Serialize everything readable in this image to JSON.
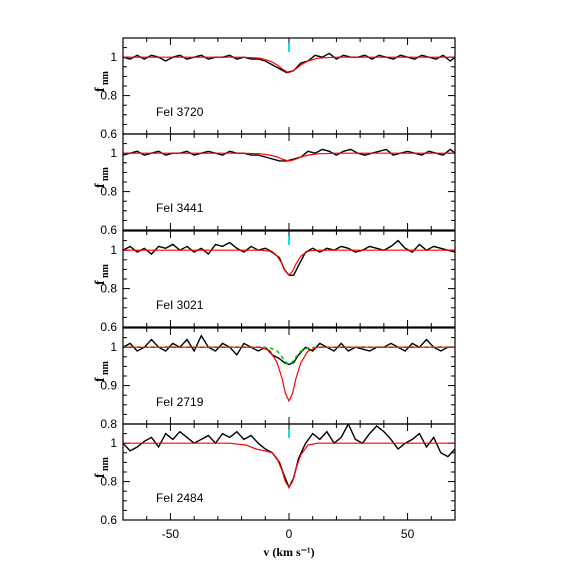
{
  "chart_data": {
    "type": "line",
    "xlabel": "v (km s⁻¹)",
    "xlim": [
      -70,
      70
    ],
    "xticks": [
      -50,
      0,
      50
    ],
    "ylabel_main": "f",
    "ylabel_sub": "nm",
    "colors": {
      "data": "#000000",
      "model": "#ff0000",
      "alt_model": "#00cc00",
      "marker": "#00e5ee"
    },
    "panels": [
      {
        "label": "FeI 3720",
        "ylim": [
          0.6,
          1.1
        ],
        "yticks": [
          0.6,
          0.8,
          1
        ],
        "marker_x": 0,
        "data_x": [
          -70,
          -67,
          -64,
          -61,
          -58,
          -55,
          -52,
          -49,
          -46,
          -43,
          -40,
          -37,
          -34,
          -31,
          -28,
          -25,
          -22,
          -19,
          -16,
          -13,
          -10,
          -7,
          -4,
          -1,
          2,
          5,
          8,
          11,
          14,
          17,
          20,
          23,
          26,
          29,
          32,
          35,
          38,
          41,
          44,
          47,
          50,
          53,
          56,
          59,
          62,
          65,
          68,
          70
        ],
        "data_y": [
          1.0,
          0.99,
          1.01,
          0.99,
          1.01,
          1.0,
          0.98,
          1.0,
          1.01,
          0.99,
          1.0,
          1.01,
          0.99,
          1.0,
          1.0,
          1.01,
          0.99,
          1.0,
          0.99,
          0.99,
          0.98,
          0.96,
          0.94,
          0.92,
          0.93,
          0.97,
          0.98,
          1.01,
          1.0,
          1.02,
          0.99,
          1.01,
          1.0,
          1.0,
          1.01,
          0.99,
          1.01,
          1.0,
          0.99,
          1.01,
          1.0,
          0.99,
          1.01,
          1.0,
          0.99,
          1.01,
          0.98,
          1.0
        ],
        "model_x": [
          -70,
          -20,
          -12,
          -8,
          -5,
          -3,
          -1,
          0,
          1,
          3,
          5,
          8,
          12,
          20,
          70
        ],
        "model_y": [
          1.0,
          1.0,
          0.995,
          0.98,
          0.96,
          0.94,
          0.925,
          0.92,
          0.925,
          0.94,
          0.96,
          0.98,
          0.995,
          1.0,
          1.0
        ]
      },
      {
        "label": "FeI 3441",
        "ylim": [
          0.6,
          1.1
        ],
        "yticks": [
          0.6,
          0.8,
          1
        ],
        "marker_x": null,
        "data_x": [
          -70,
          -67,
          -64,
          -61,
          -58,
          -55,
          -52,
          -49,
          -46,
          -43,
          -40,
          -37,
          -34,
          -31,
          -28,
          -25,
          -22,
          -19,
          -16,
          -13,
          -10,
          -7,
          -4,
          -1,
          2,
          5,
          8,
          11,
          14,
          17,
          20,
          23,
          26,
          29,
          32,
          35,
          38,
          41,
          44,
          47,
          50,
          53,
          56,
          59,
          62,
          65,
          68,
          70
        ],
        "data_y": [
          0.99,
          1.0,
          1.01,
          0.99,
          1.0,
          1.01,
          0.99,
          1.0,
          1.0,
          1.01,
          0.99,
          1.0,
          1.01,
          1.0,
          0.99,
          1.01,
          1.0,
          1.0,
          0.99,
          0.99,
          0.98,
          0.97,
          0.96,
          0.96,
          0.97,
          0.98,
          1.01,
          1.0,
          1.02,
          1.01,
          0.99,
          1.01,
          1.02,
          1.0,
          0.99,
          1.0,
          1.01,
          1.02,
          0.99,
          1.0,
          1.01,
          1.0,
          0.99,
          1.01,
          1.0,
          0.99,
          1.02,
          1.0
        ],
        "model_x": [
          -70,
          -20,
          -12,
          -8,
          -5,
          -3,
          -1,
          0,
          1,
          3,
          5,
          8,
          12,
          20,
          70
        ],
        "model_y": [
          1.0,
          1.0,
          0.997,
          0.99,
          0.98,
          0.97,
          0.962,
          0.96,
          0.962,
          0.97,
          0.98,
          0.99,
          0.997,
          1.0,
          1.0
        ]
      },
      {
        "label": "FeI 3021",
        "ylim": [
          0.6,
          1.1
        ],
        "yticks": [
          0.6,
          0.8,
          1
        ],
        "marker_x": 0,
        "data_x": [
          -70,
          -67,
          -64,
          -61,
          -58,
          -55,
          -52,
          -49,
          -46,
          -43,
          -40,
          -37,
          -34,
          -31,
          -28,
          -25,
          -22,
          -19,
          -16,
          -13,
          -10,
          -7,
          -4,
          -2,
          0,
          2,
          4,
          7,
          10,
          13,
          16,
          19,
          22,
          25,
          28,
          31,
          34,
          37,
          40,
          43,
          46,
          49,
          52,
          55,
          58,
          61,
          64,
          67,
          70
        ],
        "data_y": [
          1.0,
          1.02,
          0.99,
          1.01,
          0.98,
          1.02,
          1.01,
          1.03,
          1.0,
          1.02,
          0.99,
          1.01,
          0.98,
          1.03,
          1.02,
          1.04,
          1.01,
          0.99,
          1.02,
          1.0,
          1.01,
          0.99,
          0.96,
          0.9,
          0.87,
          0.87,
          0.92,
          0.99,
          1.01,
          0.99,
          1.01,
          1.0,
          1.02,
          1.01,
          0.99,
          1.0,
          1.02,
          1.01,
          1.0,
          1.02,
          1.05,
          1.01,
          0.99,
          1.03,
          1.0,
          1.02,
          1.01,
          1.0,
          0.99
        ],
        "model_x": [
          -70,
          -12,
          -8,
          -5,
          -3,
          -1.5,
          0,
          1.5,
          3,
          5,
          8,
          12,
          70
        ],
        "model_y": [
          1.0,
          1.0,
          0.995,
          0.97,
          0.93,
          0.89,
          0.87,
          0.89,
          0.93,
          0.97,
          0.995,
          1.0,
          1.0
        ]
      },
      {
        "label": "FeI 2719",
        "ylim": [
          0.8,
          1.05
        ],
        "yticks": [
          0.8,
          0.9,
          1
        ],
        "marker_x": null,
        "data_x": [
          -70,
          -67,
          -64,
          -61,
          -58,
          -55,
          -52,
          -49,
          -46,
          -43,
          -40,
          -37,
          -34,
          -31,
          -28,
          -25,
          -22,
          -19,
          -16,
          -13,
          -10,
          -7,
          -4,
          -2,
          0,
          2,
          4,
          7,
          10,
          13,
          16,
          19,
          22,
          25,
          28,
          31,
          34,
          37,
          40,
          43,
          46,
          49,
          52,
          55,
          58,
          61,
          64,
          67,
          70
        ],
        "data_y": [
          1.0,
          1.01,
          0.99,
          1.0,
          1.02,
          1.0,
          0.99,
          1.01,
          1.0,
          1.02,
          0.99,
          1.03,
          1.0,
          0.99,
          1.01,
          1.0,
          0.98,
          1.01,
          1.0,
          0.99,
          1.0,
          0.98,
          0.97,
          0.96,
          0.955,
          0.96,
          0.98,
          1.0,
          0.99,
          1.01,
          1.0,
          0.99,
          1.01,
          0.99,
          1.0,
          0.995,
          0.99,
          1.0,
          1.0,
          1.01,
          1.0,
          0.99,
          1.01,
          1.0,
          1.02,
          1.0,
          0.99,
          1.0,
          1.0
        ],
        "model_x": [
          -70,
          -12,
          -8,
          -5,
          -3,
          -1.5,
          0,
          1.5,
          3,
          5,
          8,
          12,
          70
        ],
        "model_y": [
          1.0,
          1.0,
          0.99,
          0.96,
          0.92,
          0.88,
          0.86,
          0.88,
          0.92,
          0.96,
          0.99,
          1.0,
          1.0
        ],
        "alt_model_x": [
          -70,
          -12,
          -8,
          -5,
          -3,
          -1.5,
          0,
          1.5,
          3,
          5,
          8,
          12,
          70
        ],
        "alt_model_y": [
          1.0,
          1.0,
          0.998,
          0.99,
          0.975,
          0.962,
          0.955,
          0.962,
          0.975,
          0.99,
          0.998,
          1.0,
          1.0
        ]
      },
      {
        "label": "FeI 2484",
        "ylim": [
          0.6,
          1.1
        ],
        "yticks": [
          0.6,
          0.8,
          1
        ],
        "marker_x": 0,
        "data_x": [
          -70,
          -67,
          -64,
          -61,
          -58,
          -55,
          -52,
          -49,
          -46,
          -43,
          -40,
          -37,
          -34,
          -31,
          -28,
          -25,
          -22,
          -19,
          -16,
          -13,
          -10,
          -7,
          -4,
          -2,
          0,
          2,
          4,
          7,
          10,
          13,
          16,
          19,
          22,
          25,
          28,
          31,
          34,
          37,
          40,
          43,
          46,
          49,
          52,
          55,
          58,
          61,
          64,
          67,
          70
        ],
        "data_y": [
          1.0,
          0.96,
          0.98,
          1.01,
          1.03,
          0.98,
          1.05,
          1.02,
          1.06,
          1.03,
          1.0,
          1.02,
          1.04,
          1.0,
          1.05,
          1.03,
          1.06,
          1.02,
          1.04,
          1.0,
          0.97,
          0.95,
          0.9,
          0.83,
          0.77,
          0.82,
          0.92,
          1.0,
          1.05,
          1.02,
          1.06,
          1.0,
          1.03,
          1.1,
          1.02,
          1.0,
          1.05,
          1.09,
          1.06,
          1.02,
          0.97,
          1.0,
          1.02,
          1.05,
          0.98,
          1.03,
          0.95,
          0.93,
          0.97
        ],
        "model_x": [
          -70,
          -25,
          -18,
          -14,
          -10,
          -7,
          -5,
          -3,
          -1.5,
          0,
          1.5,
          3,
          5,
          8,
          12,
          70
        ],
        "model_y": [
          1.0,
          1.0,
          0.99,
          0.97,
          0.96,
          0.95,
          0.92,
          0.86,
          0.8,
          0.77,
          0.8,
          0.87,
          0.94,
          0.99,
          1.0,
          1.0
        ]
      }
    ]
  }
}
